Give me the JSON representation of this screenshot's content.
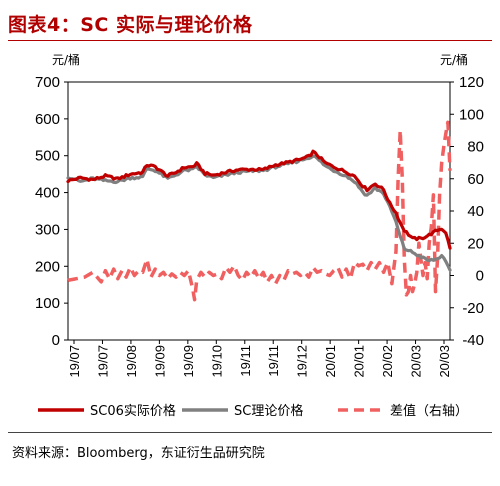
{
  "header": {
    "title": "图表4：SC 实际与理论价格"
  },
  "footer": {
    "source": "资料来源：Bloomberg，东证衍生品研究院"
  },
  "chart_data": {
    "type": "line",
    "y_left_unit": "元/桶",
    "y_right_unit": "元/桶",
    "y_left": {
      "lim": [
        0,
        700
      ],
      "ticks": [
        0,
        100,
        200,
        300,
        400,
        500,
        600,
        700
      ]
    },
    "y_right": {
      "lim": [
        -40,
        120
      ],
      "ticks": [
        -40,
        -20,
        0,
        20,
        40,
        60,
        80,
        100,
        120
      ]
    },
    "categories": [
      "19/07",
      "19/07",
      "19/08",
      "19/09",
      "19/09",
      "19/10",
      "19/11",
      "19/11",
      "19/12",
      "20/01",
      "20/01",
      "20/02",
      "20/03",
      "20/03"
    ],
    "n_points": 185,
    "series": [
      {
        "name": "SC06实际价格",
        "axis": "left",
        "color": "#c00000",
        "style": "solid",
        "knots": [
          [
            0,
            432
          ],
          [
            6,
            440
          ],
          [
            12,
            435
          ],
          [
            18,
            445
          ],
          [
            24,
            437
          ],
          [
            30,
            450
          ],
          [
            36,
            455
          ],
          [
            38,
            475
          ],
          [
            42,
            470
          ],
          [
            48,
            445
          ],
          [
            52,
            455
          ],
          [
            56,
            468
          ],
          [
            60,
            470
          ],
          [
            62,
            478
          ],
          [
            66,
            452
          ],
          [
            70,
            447
          ],
          [
            76,
            455
          ],
          [
            82,
            462
          ],
          [
            88,
            463
          ],
          [
            94,
            462
          ],
          [
            100,
            475
          ],
          [
            106,
            482
          ],
          [
            112,
            490
          ],
          [
            116,
            498
          ],
          [
            118,
            510
          ],
          [
            120,
            502
          ],
          [
            124,
            480
          ],
          [
            128,
            470
          ],
          [
            134,
            456
          ],
          [
            138,
            445
          ],
          [
            142,
            418
          ],
          [
            144,
            408
          ],
          [
            148,
            424
          ],
          [
            152,
            408
          ],
          [
            155,
            370
          ],
          [
            156,
            362
          ],
          [
            158,
            345
          ],
          [
            160,
            318
          ],
          [
            162,
            298
          ],
          [
            166,
            275
          ],
          [
            170,
            275
          ],
          [
            174,
            285
          ],
          [
            178,
            298
          ],
          [
            180,
            302
          ],
          [
            182,
            292
          ],
          [
            184,
            248
          ]
        ]
      },
      {
        "name": "SC理论价格",
        "axis": "left",
        "color": "#808080",
        "style": "solid",
        "knots": [
          [
            0,
            443
          ],
          [
            6,
            430
          ],
          [
            12,
            438
          ],
          [
            18,
            432
          ],
          [
            24,
            430
          ],
          [
            30,
            440
          ],
          [
            36,
            442
          ],
          [
            38,
            465
          ],
          [
            42,
            460
          ],
          [
            48,
            438
          ],
          [
            52,
            448
          ],
          [
            56,
            460
          ],
          [
            60,
            462
          ],
          [
            62,
            470
          ],
          [
            66,
            448
          ],
          [
            70,
            440
          ],
          [
            76,
            448
          ],
          [
            82,
            455
          ],
          [
            88,
            458
          ],
          [
            94,
            460
          ],
          [
            100,
            470
          ],
          [
            106,
            478
          ],
          [
            112,
            488
          ],
          [
            116,
            495
          ],
          [
            118,
            500
          ],
          [
            120,
            492
          ],
          [
            124,
            472
          ],
          [
            128,
            460
          ],
          [
            134,
            445
          ],
          [
            138,
            430
          ],
          [
            142,
            402
          ],
          [
            144,
            392
          ],
          [
            148,
            412
          ],
          [
            152,
            398
          ],
          [
            155,
            360
          ],
          [
            156,
            348
          ],
          [
            158,
            320
          ],
          [
            160,
            280
          ],
          [
            162,
            248
          ],
          [
            166,
            238
          ],
          [
            170,
            225
          ],
          [
            174,
            215
          ],
          [
            178,
            220
          ],
          [
            180,
            230
          ],
          [
            182,
            210
          ],
          [
            184,
            188
          ]
        ]
      },
      {
        "name": "差值（右轴）",
        "axis": "right",
        "color": "#f06060",
        "style": "dashed",
        "knots": [
          [
            0,
            -3
          ],
          [
            4,
            -2
          ],
          [
            8,
            -1
          ],
          [
            12,
            2
          ],
          [
            16,
            -4
          ],
          [
            18,
            3
          ],
          [
            20,
            -2
          ],
          [
            22,
            4
          ],
          [
            24,
            -2
          ],
          [
            26,
            3
          ],
          [
            28,
            -1
          ],
          [
            30,
            5
          ],
          [
            32,
            0
          ],
          [
            34,
            3
          ],
          [
            36,
            2
          ],
          [
            38,
            10
          ],
          [
            40,
            -1
          ],
          [
            42,
            4
          ],
          [
            44,
            0
          ],
          [
            46,
            2
          ],
          [
            48,
            -2
          ],
          [
            50,
            1
          ],
          [
            52,
            -1
          ],
          [
            54,
            2
          ],
          [
            56,
            0
          ],
          [
            58,
            3
          ],
          [
            60,
            -8
          ],
          [
            61,
            -15
          ],
          [
            62,
            -3
          ],
          [
            64,
            2
          ],
          [
            66,
            -1
          ],
          [
            68,
            2
          ],
          [
            70,
            0
          ],
          [
            72,
            1
          ],
          [
            74,
            -2
          ],
          [
            76,
            5
          ],
          [
            78,
            2
          ],
          [
            80,
            6
          ],
          [
            82,
            0
          ],
          [
            84,
            -3
          ],
          [
            86,
            2
          ],
          [
            88,
            -1
          ],
          [
            90,
            3
          ],
          [
            92,
            -2
          ],
          [
            94,
            2
          ],
          [
            96,
            -4
          ],
          [
            98,
            0
          ],
          [
            100,
            -5
          ],
          [
            102,
            0
          ],
          [
            104,
            -3
          ],
          [
            106,
            3
          ],
          [
            108,
            1
          ],
          [
            110,
            2
          ],
          [
            112,
            0
          ],
          [
            114,
            2
          ],
          [
            116,
            -1
          ],
          [
            118,
            5
          ],
          [
            120,
            2
          ],
          [
            122,
            3
          ],
          [
            124,
            1
          ],
          [
            126,
            0
          ],
          [
            128,
            3
          ],
          [
            130,
            5
          ],
          [
            132,
            -1
          ],
          [
            134,
            4
          ],
          [
            136,
            -2
          ],
          [
            138,
            8
          ],
          [
            140,
            6
          ],
          [
            142,
            7
          ],
          [
            144,
            3
          ],
          [
            146,
            8
          ],
          [
            148,
            4
          ],
          [
            150,
            8
          ],
          [
            152,
            2
          ],
          [
            154,
            8
          ],
          [
            156,
            -5
          ],
          [
            158,
            15
          ],
          [
            159,
            60
          ],
          [
            160,
            90
          ],
          [
            161,
            60
          ],
          [
            162,
            10
          ],
          [
            163,
            -12
          ],
          [
            164,
            -10
          ],
          [
            165,
            0
          ],
          [
            166,
            -10
          ],
          [
            167,
            -5
          ],
          [
            168,
            2
          ],
          [
            169,
            20
          ],
          [
            170,
            10
          ],
          [
            171,
            0
          ],
          [
            172,
            8
          ],
          [
            173,
            -2
          ],
          [
            174,
            20
          ],
          [
            175,
            30
          ],
          [
            176,
            50
          ],
          [
            177,
            -10
          ],
          [
            178,
            10
          ],
          [
            179,
            50
          ],
          [
            180,
            70
          ],
          [
            181,
            80
          ],
          [
            182,
            88
          ],
          [
            183,
            95
          ],
          [
            184,
            65
          ]
        ]
      }
    ]
  },
  "legend": {
    "items": [
      {
        "label": "SC06实际价格",
        "color": "#c00000",
        "style": "solid"
      },
      {
        "label": "SC理论价格",
        "color": "#808080",
        "style": "solid"
      },
      {
        "label": "差值（右轴）",
        "color": "#f06060",
        "style": "dashed"
      }
    ]
  }
}
